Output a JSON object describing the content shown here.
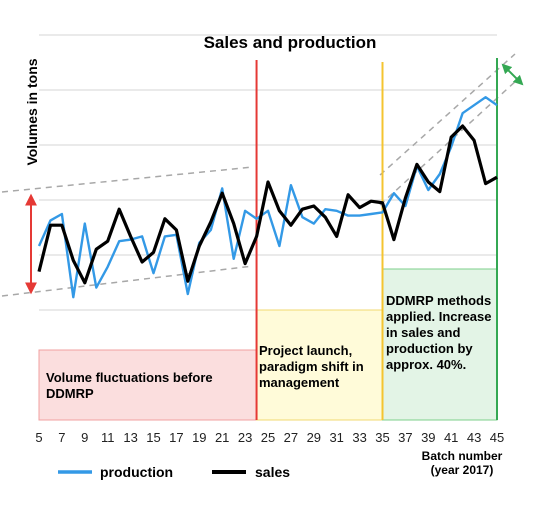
{
  "chart_data": {
    "type": "line",
    "title": "Sales and production",
    "ylabel": "Volumes in tons",
    "xlabel_line1": "Batch number",
    "xlabel_line2": "(year 2017)",
    "x": [
      5,
      6,
      7,
      8,
      9,
      10,
      11,
      12,
      13,
      14,
      15,
      16,
      17,
      18,
      19,
      20,
      21,
      22,
      23,
      24,
      25,
      26,
      27,
      28,
      29,
      30,
      31,
      32,
      33,
      34,
      35,
      36,
      37,
      38,
      39,
      40,
      41,
      42,
      43,
      44,
      45
    ],
    "x_tick_labels": [
      "5",
      "7",
      "9",
      "11",
      "13",
      "15",
      "17",
      "19",
      "21",
      "23",
      "25",
      "27",
      "29",
      "31",
      "33",
      "35",
      "37",
      "39",
      "41",
      "43",
      "45"
    ],
    "grid": true,
    "legend_position": "bottom",
    "series": [
      {
        "name": "production",
        "color": "#3399e6",
        "values": [
          40,
          56,
          60,
          8,
          54,
          14,
          27,
          43,
          44,
          46,
          23,
          46,
          47,
          10,
          42,
          50,
          76,
          32,
          62,
          57,
          62,
          40,
          78,
          58,
          54,
          63,
          62,
          59,
          59,
          60,
          61,
          73,
          65,
          90,
          75,
          85,
          102,
          123,
          128,
          133,
          128
        ]
      },
      {
        "name": "sales",
        "color": "#000000",
        "values": [
          24,
          53,
          53,
          31,
          17,
          38,
          43,
          63,
          46,
          30,
          36,
          57,
          50,
          18,
          40,
          55,
          73,
          54,
          29,
          46,
          80,
          62,
          53,
          63,
          65,
          58,
          46,
          72,
          64,
          68,
          67,
          44,
          70,
          91,
          80,
          74,
          108,
          115,
          106,
          79,
          83
        ]
      }
    ],
    "annotations": [
      "Volume fluctuations before DDMRP",
      "Project launch, paradigm shift in management",
      "DDMRP methods applied. Increase in sales and production by approx. 40%."
    ],
    "phase_dividers": [
      {
        "batch": 24,
        "color": "#e53935"
      },
      {
        "batch": 35,
        "color": "#f4c430"
      },
      {
        "batch": 45,
        "color": "#34a853"
      }
    ],
    "phase_colors": {
      "before": "#fbdede",
      "launch": "#fffbd9",
      "applied": "#e3f4e6"
    }
  }
}
